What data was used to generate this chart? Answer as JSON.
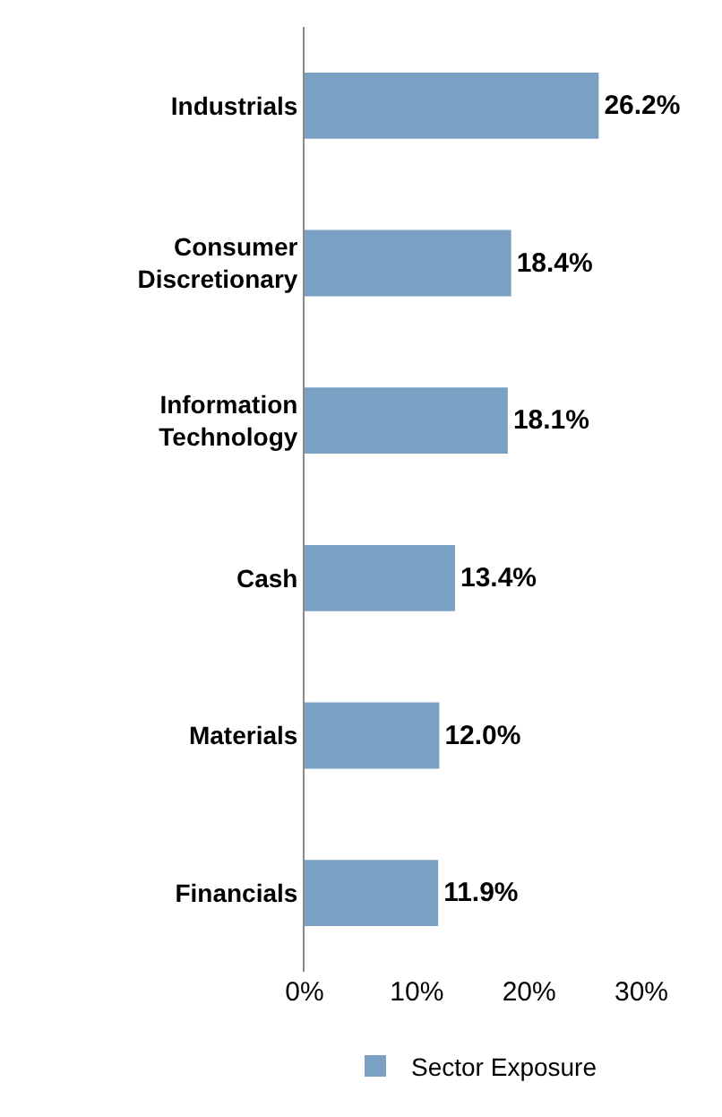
{
  "chart_data": {
    "type": "bar",
    "orientation": "horizontal",
    "categories": [
      "Industrials",
      "Consumer Discretionary",
      "Information Technology",
      "Cash",
      "Materials",
      "Financials"
    ],
    "series": [
      {
        "name": "Sector Exposure",
        "color": "#7aa0c4",
        "values": [
          26.2,
          18.4,
          18.1,
          13.4,
          12.0,
          11.9
        ],
        "value_labels": [
          "26.2%",
          "18.4%",
          "18.1%",
          "13.4%",
          "12.0%",
          "11.9%"
        ]
      }
    ],
    "xlim": [
      0,
      30
    ],
    "xticks": [
      {
        "value": 0,
        "label": "0%"
      },
      {
        "value": 10,
        "label": "10%"
      },
      {
        "value": 20,
        "label": "20%"
      },
      {
        "value": 30,
        "label": "30%"
      }
    ],
    "legend": "bottom"
  }
}
